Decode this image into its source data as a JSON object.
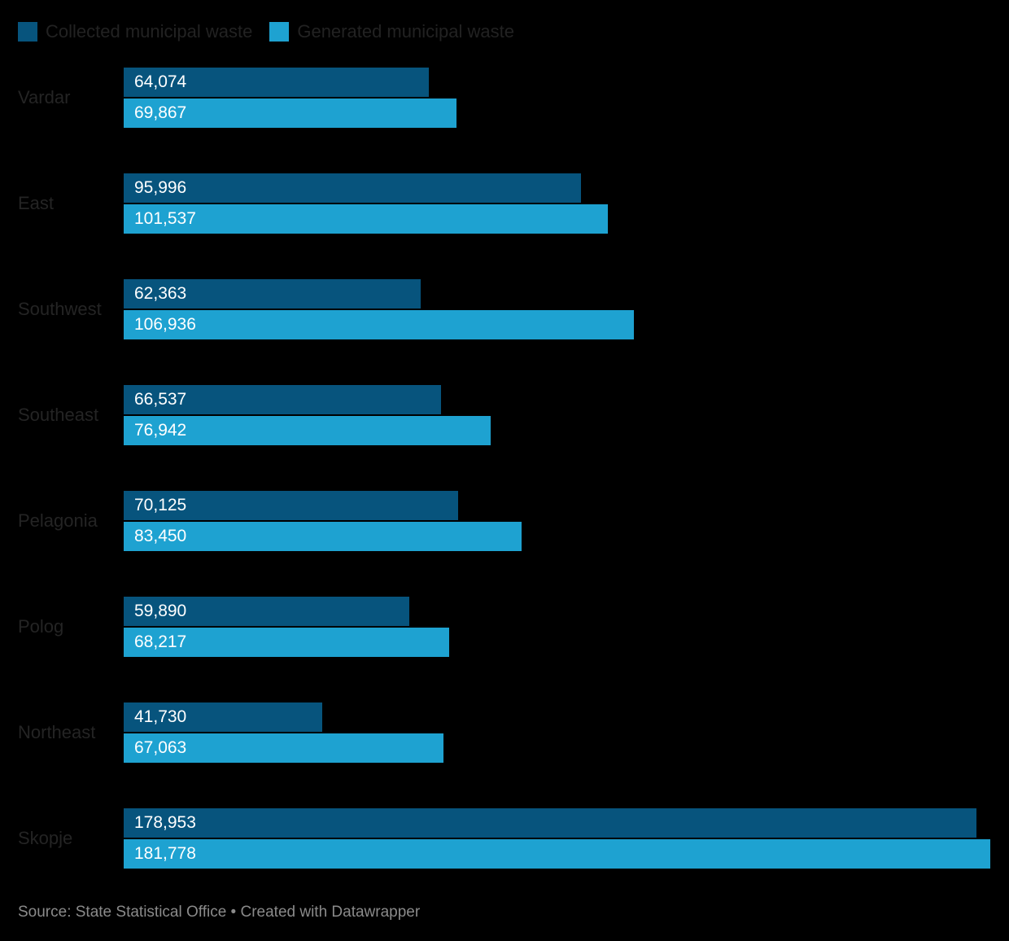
{
  "legend": {
    "items": [
      {
        "label": "Collected municipal waste",
        "color": "#07547d"
      },
      {
        "label": "Generated municipal waste",
        "color": "#1ea2d1"
      }
    ]
  },
  "footer": {
    "text": "Source: State Statistical Office • Created with Datawrapper"
  },
  "colors": {
    "background": "#000000",
    "category_label": "#242424",
    "legend_text": "#222222",
    "value_text": "#ffffff",
    "footer_text": "#8a8a8a"
  },
  "chart_data": {
    "type": "bar",
    "orientation": "horizontal",
    "title": "",
    "xlabel": "",
    "ylabel": "",
    "grid": false,
    "legend_position": "top",
    "axis_max": 181778,
    "categories": [
      "Vardar",
      "East",
      "Southwest",
      "Southeast",
      "Pelagonia",
      "Polog",
      "Northeast",
      "Skopje"
    ],
    "series": [
      {
        "name": "Collected municipal waste",
        "color": "#07547d",
        "values": [
          64074,
          95996,
          62363,
          66537,
          70125,
          59890,
          41730,
          178953
        ],
        "labels": [
          "64,074",
          "95,996",
          "62,363",
          "66,537",
          "70,125",
          "59,890",
          "41,730",
          "178,953"
        ]
      },
      {
        "name": "Generated municipal waste",
        "color": "#1ea2d1",
        "values": [
          69867,
          101537,
          106936,
          76942,
          83450,
          68217,
          67063,
          181778
        ],
        "labels": [
          "69,867",
          "101,537",
          "106,936",
          "76,942",
          "83,450",
          "68,217",
          "67,063",
          "181,778"
        ]
      }
    ]
  }
}
